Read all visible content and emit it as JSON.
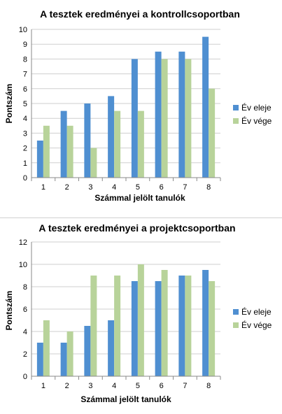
{
  "chart_data": [
    {
      "type": "bar",
      "title": "A tesztek  eredményei a kontrollcsoportban",
      "xlabel": "Számmal jelölt tanulók",
      "ylabel": "Pontszám",
      "categories": [
        "1",
        "2",
        "3",
        "4",
        "5",
        "6",
        "7",
        "8"
      ],
      "ylim": [
        0,
        10
      ],
      "yticks": [
        "0",
        "1",
        "2",
        "3",
        "4",
        "5",
        "6",
        "7",
        "8",
        "9",
        "10"
      ],
      "series": [
        {
          "name": "Év eleje",
          "color": "#4f8fd1",
          "values": [
            2.5,
            4.5,
            5,
            5.5,
            8,
            8.5,
            8.5,
            9.5
          ]
        },
        {
          "name": "Év vége",
          "color": "#b8d39a",
          "values": [
            3.5,
            3.5,
            2,
            4.5,
            4.5,
            8,
            8,
            6
          ]
        }
      ],
      "grid": true,
      "legend": "right"
    },
    {
      "type": "bar",
      "title": "A tesztek eredményei a projektcsoportban",
      "xlabel": "Számmal jelölt tanulók",
      "ylabel": "Pontszám",
      "categories": [
        "1",
        "2",
        "3",
        "4",
        "5",
        "6",
        "7",
        "8"
      ],
      "ylim": [
        0,
        12
      ],
      "yticks": [
        "0",
        "2",
        "4",
        "6",
        "8",
        "10",
        "12"
      ],
      "series": [
        {
          "name": "Év eleje",
          "color": "#4f8fd1",
          "values": [
            3,
            3,
            4.5,
            5,
            8.5,
            8.5,
            9,
            9.5
          ]
        },
        {
          "name": "Év vége",
          "color": "#b8d39a",
          "values": [
            5,
            4,
            9,
            9,
            10,
            9.5,
            9,
            8.5
          ]
        }
      ],
      "grid": true,
      "legend": "right"
    }
  ]
}
